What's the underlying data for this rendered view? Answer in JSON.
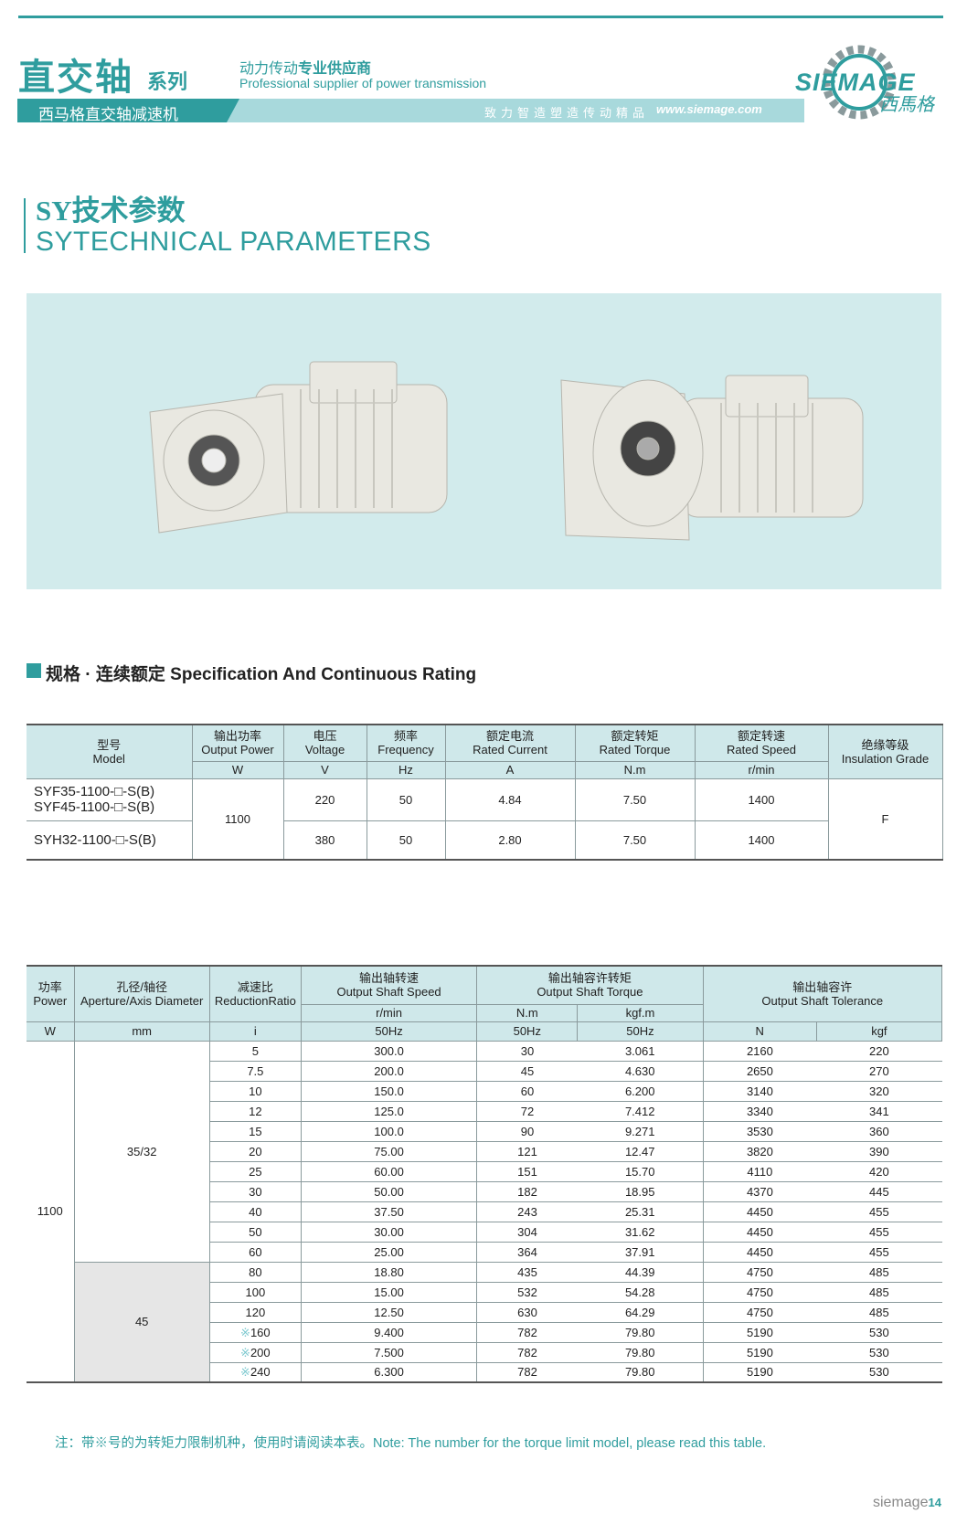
{
  "header": {
    "title": "直交轴",
    "series": "系列",
    "subtitle": "西马格直交轴减速机",
    "tagline_cn_a": "动力传动",
    "tagline_cn_b": "专业供应商",
    "tagline_en": "Professional supplier of power transmission",
    "slogan": "致力智造塑造传动精品",
    "website": "www.siemage.com",
    "logo": "SIEMAGE",
    "logo_cn": "西馬格"
  },
  "section": {
    "title_cn": "SY技术参数",
    "title_en": "SYTECHNICAL PARAMETERS"
  },
  "table1": {
    "heading": "规格 · 连续额定 Specification And Continuous Rating",
    "columns": [
      {
        "cn": "型号",
        "en": "Model"
      },
      {
        "cn": "输出功率",
        "en": "Output Power",
        "unit": "W"
      },
      {
        "cn": "电压",
        "en": "Voltage",
        "unit": "V"
      },
      {
        "cn": "频率",
        "en": "Frequency",
        "unit": "Hz"
      },
      {
        "cn": "额定电流",
        "en": "Rated Current",
        "unit": "A"
      },
      {
        "cn": "额定转矩",
        "en": "Rated Torque",
        "unit": "N.m"
      },
      {
        "cn": "额定转速",
        "en": "Rated Speed",
        "unit": "r/min"
      },
      {
        "cn": "绝缘等级",
        "en": "Insulation Grade"
      }
    ],
    "power": "1100",
    "insulation": "F",
    "rows": [
      {
        "model": [
          "SYF35-1100-□-S(B)",
          "SYF45-1100-□-S(B)"
        ],
        "values": [
          "220",
          "50",
          "4.84",
          "7.50",
          "1400"
        ]
      },
      {
        "model": [
          "SYH32-1100-□-S(B)"
        ],
        "values": [
          "380",
          "50",
          "2.80",
          "7.50",
          "1400"
        ]
      }
    ]
  },
  "table2": {
    "headers": {
      "power": {
        "cn": "功率",
        "en": "Power",
        "unit": "W"
      },
      "aperture": {
        "cn": "孔径/轴径",
        "en": "Aperture/Axis Diameter",
        "unit": "mm"
      },
      "ratio": {
        "cn": "减速比",
        "en": "ReductionRatio",
        "unit": "i"
      },
      "speed": {
        "cn": "输出轴转速",
        "en": "Output Shaft Speed",
        "unit": "r/min",
        "freq": "50Hz"
      },
      "torque": {
        "cn": "输出轴容许转矩",
        "en": "Output Shaft Torque",
        "units": [
          "N.m",
          "kgf.m"
        ],
        "freq": [
          "50Hz",
          "50Hz"
        ]
      },
      "tolerance": {
        "cn": "输出轴容许",
        "en": "Output Shaft Tolerance",
        "units": [
          "N",
          "kgf"
        ]
      }
    },
    "power": "1100",
    "groups": [
      {
        "aperture": "35/32",
        "rows": [
          [
            "5",
            "300.0",
            "30",
            "3.061",
            "2160",
            "220"
          ],
          [
            "7.5",
            "200.0",
            "45",
            "4.630",
            "2650",
            "270"
          ],
          [
            "10",
            "150.0",
            "60",
            "6.200",
            "3140",
            "320"
          ],
          [
            "12",
            "125.0",
            "72",
            "7.412",
            "3340",
            "341"
          ],
          [
            "15",
            "100.0",
            "90",
            "9.271",
            "3530",
            "360"
          ],
          [
            "20",
            "75.00",
            "121",
            "12.47",
            "3820",
            "390"
          ],
          [
            "25",
            "60.00",
            "151",
            "15.70",
            "4110",
            "420"
          ],
          [
            "30",
            "50.00",
            "182",
            "18.95",
            "4370",
            "445"
          ],
          [
            "40",
            "37.50",
            "243",
            "25.31",
            "4450",
            "455"
          ],
          [
            "50",
            "30.00",
            "304",
            "31.62",
            "4450",
            "455"
          ],
          [
            "60",
            "25.00",
            "364",
            "37.91",
            "4450",
            "455"
          ]
        ]
      },
      {
        "aperture": "45",
        "rows": [
          [
            "80",
            "18.80",
            "435",
            "44.39",
            "4750",
            "485"
          ],
          [
            "100",
            "15.00",
            "532",
            "54.28",
            "4750",
            "485"
          ],
          [
            "120",
            "12.50",
            "630",
            "64.29",
            "4750",
            "485"
          ],
          [
            "※160",
            "9.400",
            "782",
            "79.80",
            "5190",
            "530"
          ],
          [
            "※200",
            "7.500",
            "782",
            "79.80",
            "5190",
            "530"
          ],
          [
            "※240",
            "6.300",
            "782",
            "79.80",
            "5190",
            "530"
          ]
        ]
      }
    ]
  },
  "note": "注：带※号的为转矩力限制机种，使用时请阅读本表。Note: The number for the torque limit model, please read this table.",
  "footer": {
    "brand": "siemage",
    "page": "14"
  }
}
